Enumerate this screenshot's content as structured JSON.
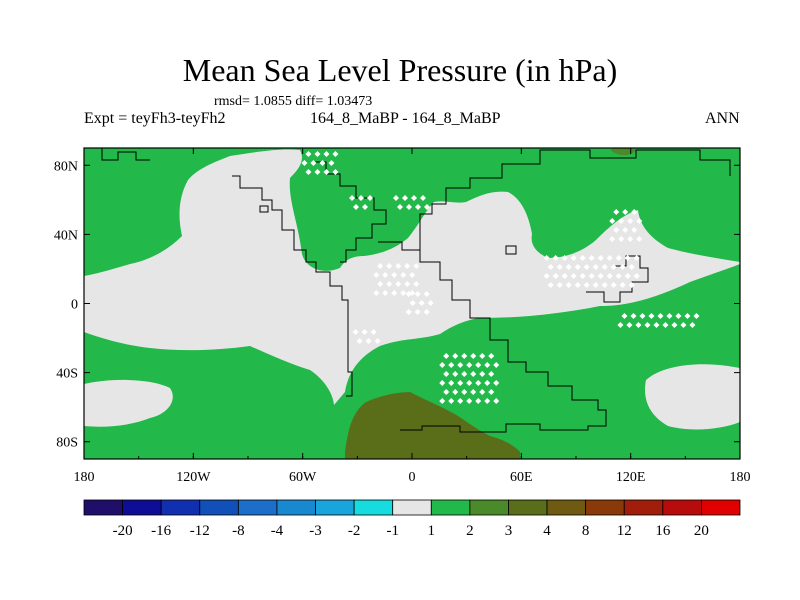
{
  "chart_data": {
    "type": "heatmap",
    "title": "Mean Sea Level Pressure (in hPa)",
    "stats_text": "rmsd= 1.0855  diff= 1.03473",
    "experiment_label": "Expt = teyFh3-teyFh2",
    "case_label": "164_8_MaBP - 164_8_MaBP",
    "season": "ANN",
    "x_ticks": [
      "180",
      "120W",
      "60W",
      "0",
      "60E",
      "120E",
      "180"
    ],
    "x_tick_values": [
      -180,
      -120,
      -60,
      0,
      60,
      120,
      180
    ],
    "y_ticks": [
      "80N",
      "40N",
      "0",
      "40S",
      "80S"
    ],
    "y_tick_values": [
      80,
      40,
      0,
      -40,
      -80
    ],
    "xlim": [
      -180,
      180
    ],
    "ylim": [
      -90,
      90
    ],
    "colorbar": {
      "labels": [
        "-20",
        "-16",
        "-12",
        "-8",
        "-4",
        "-3",
        "-2",
        "-1",
        "1",
        "2",
        "3",
        "4",
        "8",
        "12",
        "16",
        "20"
      ],
      "colors": [
        "#1f0f6b",
        "#0d0d96",
        "#1030b0",
        "#1050b8",
        "#1c6ec8",
        "#1888d0",
        "#1aa4dc",
        "#16dce0",
        "#e6e6e6",
        "#22b84a",
        "#4a8a2a",
        "#5a6e1a",
        "#6e5a10",
        "#8a3a0a",
        "#a01e0a",
        "#b80c0c",
        "#e00000"
      ]
    },
    "regions": {
      "background_class": "2",
      "near_zero_class": "-1 to 1",
      "peak_class": "3 to 4"
    }
  }
}
